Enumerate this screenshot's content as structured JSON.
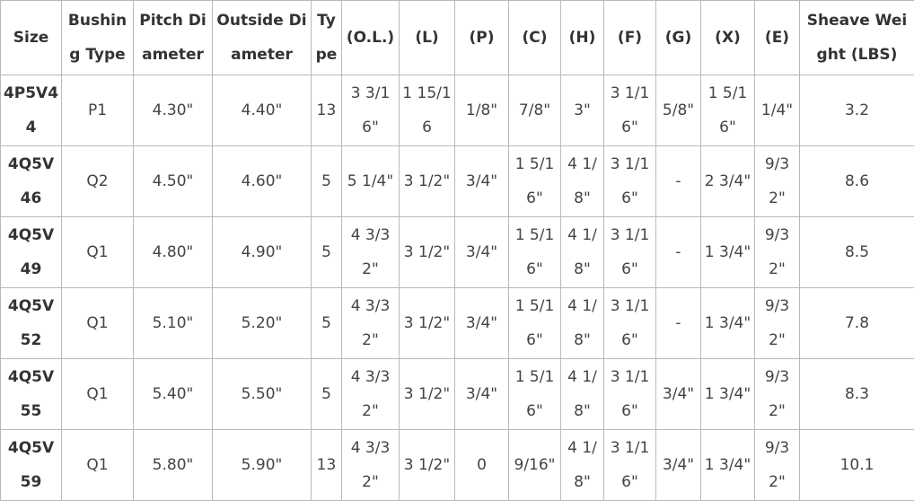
{
  "table": {
    "header": [
      "Size",
      "Bushing Type",
      "Pitch Diameter",
      "Outside Diameter",
      "Type",
      "(O.L.)",
      "(L)",
      "(P)",
      "(C)",
      "(H)",
      "(F)",
      "(G)",
      "(X)",
      "(E)",
      "Sheave Weight (LBS)"
    ],
    "rows": [
      [
        "4P5V44",
        "P1",
        "4.30\"",
        "4.40\"",
        "13",
        "3 3/16\"",
        "1 15/16",
        "1/8\"",
        "7/8\"",
        "3\"",
        "3 1/16\"",
        "5/8\"",
        "1 5/16\"",
        "1/4\"",
        "3.2"
      ],
      [
        "4Q5V46",
        "Q2",
        "4.50\"",
        "4.60\"",
        "5",
        "5 1/4\"",
        "3 1/2\"",
        "3/4\"",
        "1 5/16\"",
        "4 1/8\"",
        "3 1/16\"",
        "-",
        "2 3/4\"",
        "9/32\"",
        "8.6"
      ],
      [
        "4Q5V49",
        "Q1",
        "4.80\"",
        "4.90\"",
        "5",
        "4 3/32\"",
        "3 1/2\"",
        "3/4\"",
        "1 5/16\"",
        "4 1/8\"",
        "3 1/16\"",
        "-",
        "1 3/4\"",
        "9/32\"",
        "8.5"
      ],
      [
        "4Q5V52",
        "Q1",
        "5.10\"",
        "5.20\"",
        "5",
        "4 3/32\"",
        "3 1/2\"",
        "3/4\"",
        "1 5/16\"",
        "4 1/8\"",
        "3 1/16\"",
        "-",
        "1 3/4\"",
        "9/32\"",
        "7.8"
      ],
      [
        "4Q5V55",
        "Q1",
        "5.40\"",
        "5.50\"",
        "5",
        "4 3/32\"",
        "3 1/2\"",
        "3/4\"",
        "1 5/16\"",
        "4 1/8\"",
        "3 1/16\"",
        "3/4\"",
        "1 3/4\"",
        "9/32\"",
        "8.3"
      ],
      [
        "4Q5V59",
        "Q1",
        "5.80\"",
        "5.90\"",
        "13",
        "4 3/32\"",
        "3 1/2\"",
        "0",
        "9/16\"",
        "4 1/8\"",
        "3 1/16\"",
        "3/4\"",
        "1 3/4\"",
        "9/32\"",
        "10.1"
      ]
    ]
  }
}
